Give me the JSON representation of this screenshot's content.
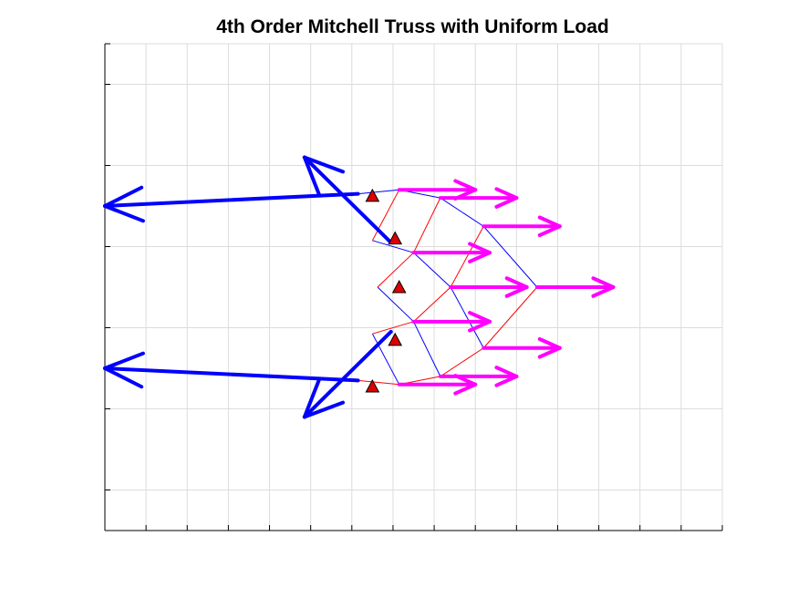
{
  "title": "4th Order Mitchell Truss with Uniform Load",
  "colors": {
    "tension": "#ff0000",
    "compression": "#0000ff",
    "load_arrow": "#ff00ff",
    "reaction_arrow": "#0000ff",
    "support_fill": "#dd0000",
    "grid": "#dcdcdc",
    "axis": "#000000"
  },
  "chart_data": {
    "type": "diagram",
    "title": "4th Order Mitchell Truss with Uniform Load",
    "grid": true,
    "xlim": [
      -1.3,
      1.7
    ],
    "ylim": [
      -1.2,
      1.2
    ],
    "xticks": [
      -1.3,
      -1.1,
      -0.9,
      -0.7,
      -0.5,
      -0.3,
      -0.1,
      0.1,
      0.3,
      0.5,
      0.7,
      0.9,
      1.1,
      1.3,
      1.5,
      1.7
    ],
    "yticks": [
      -1.2,
      -1.0,
      -0.6,
      -0.2,
      0.2,
      0.6,
      1.0,
      1.2
    ],
    "nodes": [
      {
        "id": "A",
        "x": 0.04,
        "y": 0.47
      },
      {
        "id": "B",
        "x": 0.13,
        "y": 0.48
      },
      {
        "id": "C",
        "x": 0.33,
        "y": 0.44
      },
      {
        "id": "D",
        "x": 0.54,
        "y": 0.3
      },
      {
        "id": "E",
        "x": 0.8,
        "y": 0.0
      },
      {
        "id": "F",
        "x": 0.54,
        "y": -0.3
      },
      {
        "id": "G",
        "x": 0.33,
        "y": -0.44
      },
      {
        "id": "H",
        "x": 0.13,
        "y": -0.48
      },
      {
        "id": "I",
        "x": 0.04,
        "y": -0.47
      },
      {
        "id": "J",
        "x": 0.0,
        "y": 0.23
      },
      {
        "id": "K",
        "x": 0.025,
        "y": 0.0
      },
      {
        "id": "L",
        "x": 0.0,
        "y": -0.23
      },
      {
        "id": "M",
        "x": 0.2,
        "y": 0.17
      },
      {
        "id": "N",
        "x": 0.38,
        "y": 0.0
      },
      {
        "id": "O",
        "x": 0.2,
        "y": -0.17
      },
      {
        "id": "P",
        "x": -0.07,
        "y": 0.46
      },
      {
        "id": "Q",
        "x": -0.07,
        "y": -0.46
      }
    ],
    "members": [
      {
        "from": "P",
        "to": "B",
        "kind": "compression"
      },
      {
        "from": "B",
        "to": "C",
        "kind": "compression"
      },
      {
        "from": "C",
        "to": "D",
        "kind": "compression"
      },
      {
        "from": "D",
        "to": "E",
        "kind": "compression"
      },
      {
        "from": "J",
        "to": "M",
        "kind": "compression"
      },
      {
        "from": "M",
        "to": "N",
        "kind": "compression"
      },
      {
        "from": "N",
        "to": "F",
        "kind": "compression"
      },
      {
        "from": "K",
        "to": "O",
        "kind": "compression"
      },
      {
        "from": "O",
        "to": "G",
        "kind": "compression"
      },
      {
        "from": "L",
        "to": "H",
        "kind": "compression"
      },
      {
        "from": "Q",
        "to": "H",
        "kind": "tension"
      },
      {
        "from": "H",
        "to": "G",
        "kind": "tension"
      },
      {
        "from": "G",
        "to": "F",
        "kind": "tension"
      },
      {
        "from": "F",
        "to": "E",
        "kind": "tension"
      },
      {
        "from": "L",
        "to": "O",
        "kind": "tension"
      },
      {
        "from": "O",
        "to": "N",
        "kind": "tension"
      },
      {
        "from": "N",
        "to": "D",
        "kind": "tension"
      },
      {
        "from": "K",
        "to": "M",
        "kind": "tension"
      },
      {
        "from": "M",
        "to": "C",
        "kind": "tension"
      },
      {
        "from": "J",
        "to": "B",
        "kind": "tension"
      }
    ],
    "supports": [
      {
        "x": 0.0,
        "y": 0.45
      },
      {
        "x": 0.11,
        "y": 0.24
      },
      {
        "x": 0.13,
        "y": 0.0
      },
      {
        "x": 0.11,
        "y": -0.26
      },
      {
        "x": 0.0,
        "y": -0.49
      }
    ],
    "loads": [
      {
        "x": 0.13,
        "y": 0.48,
        "dx": 0.37,
        "dy": 0.0
      },
      {
        "x": 0.33,
        "y": 0.44,
        "dx": 0.37,
        "dy": 0.0
      },
      {
        "x": 0.54,
        "y": 0.3,
        "dx": 0.37,
        "dy": 0.0
      },
      {
        "x": 0.2,
        "y": 0.17,
        "dx": 0.37,
        "dy": 0.0
      },
      {
        "x": 0.38,
        "y": 0.0,
        "dx": 0.37,
        "dy": 0.0
      },
      {
        "x": 0.8,
        "y": 0.0,
        "dx": 0.37,
        "dy": 0.0
      },
      {
        "x": 0.2,
        "y": -0.17,
        "dx": 0.37,
        "dy": 0.0
      },
      {
        "x": 0.54,
        "y": -0.3,
        "dx": 0.37,
        "dy": 0.0
      },
      {
        "x": 0.13,
        "y": -0.48,
        "dx": 0.37,
        "dy": 0.0
      },
      {
        "x": 0.33,
        "y": -0.44,
        "dx": 0.37,
        "dy": 0.0
      }
    ],
    "reactions": [
      {
        "x": -0.07,
        "y": 0.46,
        "dx": -1.23,
        "dy": -0.06
      },
      {
        "x": -0.07,
        "y": -0.46,
        "dx": -1.23,
        "dy": 0.06
      },
      {
        "x": 0.09,
        "y": 0.22,
        "dx": -0.42,
        "dy": 0.42
      },
      {
        "x": 0.09,
        "y": -0.22,
        "dx": -0.42,
        "dy": -0.42
      }
    ]
  }
}
